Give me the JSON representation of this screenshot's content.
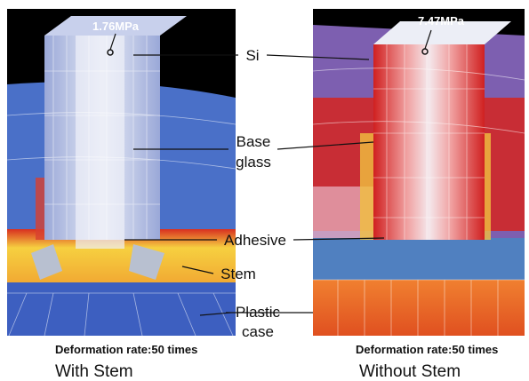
{
  "panels": [
    {
      "stress_label": "1.76MPa",
      "note": "Deformation rate:50 times",
      "caption": "With Stem"
    },
    {
      "stress_label": "7.47MPa",
      "note": "Deformation rate:50 times",
      "caption": "Without Stem"
    }
  ],
  "callouts": [
    {
      "lines": [
        "Si"
      ]
    },
    {
      "lines": [
        "Base",
        "glass"
      ]
    },
    {
      "lines": [
        "Adhesive"
      ]
    },
    {
      "lines": [
        "Stem"
      ]
    },
    {
      "lines": [
        "Plastic",
        "case"
      ]
    }
  ]
}
